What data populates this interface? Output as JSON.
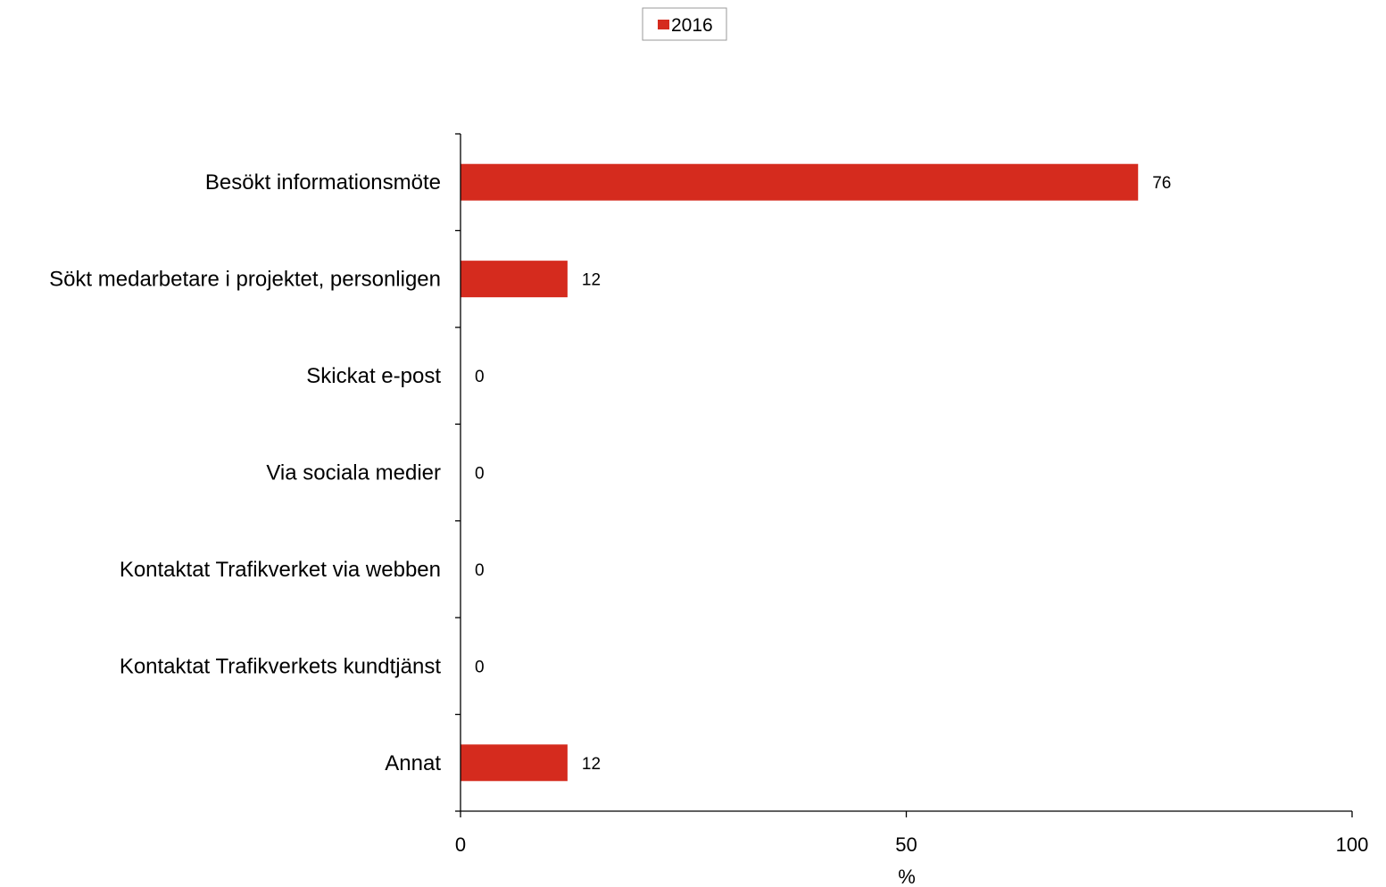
{
  "chart_data": {
    "type": "bar",
    "orientation": "horizontal",
    "categories": [
      "Besökt informationsmöte",
      "Sökt medarbetare i projektet, personligen",
      "Skickat e-post",
      "Via sociala medier",
      "Kontaktat Trafikverket via webben",
      "Kontaktat Trafikverkets kundtjänst",
      "Annat"
    ],
    "series": [
      {
        "name": "2016",
        "values": [
          76,
          12,
          0,
          0,
          0,
          0,
          12
        ],
        "color": "#d52b1e"
      }
    ],
    "data_labels": [
      "76",
      "12",
      "0",
      "0",
      "0",
      "0",
      "12"
    ],
    "xlabel": "%",
    "xlim": [
      0,
      100
    ],
    "xticks": [
      0,
      50,
      100
    ],
    "xtick_labels": [
      "0",
      "50",
      "100"
    ],
    "grid": false,
    "legend_position": "top-center"
  }
}
